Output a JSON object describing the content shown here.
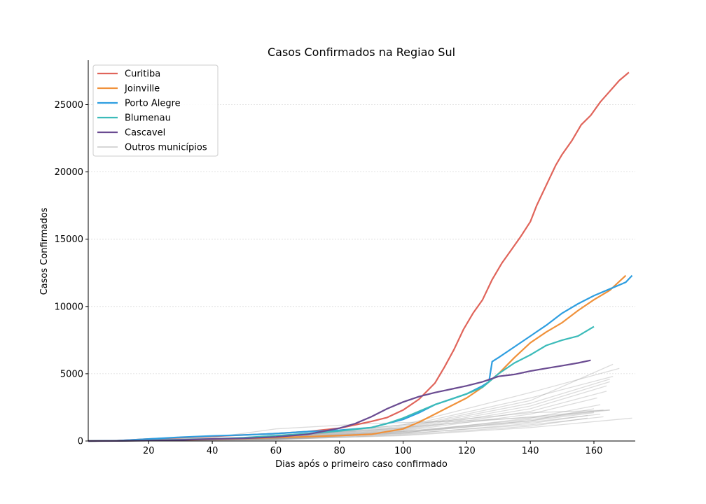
{
  "chart_data": {
    "type": "line",
    "title": "Casos Confirmados na Regiao Sul",
    "xlabel": "Dias após o primeiro caso confirmado",
    "ylabel": "Casos Confirmados",
    "xlim": [
      1,
      173
    ],
    "ylim": [
      0,
      28200
    ],
    "xticks": [
      20,
      40,
      60,
      80,
      100,
      120,
      140,
      160
    ],
    "yticks": [
      0,
      5000,
      10000,
      15000,
      20000,
      25000
    ],
    "grid": "horizontal dashed",
    "legend_position": "top-left",
    "series": [
      {
        "name": "Curitiba",
        "color": "#e0645a",
        "x": [
          1,
          10,
          20,
          30,
          40,
          50,
          60,
          70,
          80,
          90,
          95,
          100,
          105,
          110,
          113,
          116,
          119,
          122,
          125,
          128,
          131,
          134,
          137,
          140,
          142,
          144,
          146,
          148,
          150,
          153,
          156,
          159,
          162,
          165,
          168,
          171
        ],
        "y": [
          0,
          20,
          150,
          250,
          350,
          450,
          550,
          700,
          950,
          1450,
          1750,
          2300,
          3100,
          4300,
          5500,
          6800,
          8300,
          9500,
          10500,
          12000,
          13200,
          14200,
          15200,
          16300,
          17500,
          18500,
          19500,
          20500,
          21300,
          22300,
          23500,
          24200,
          25200,
          26000,
          26800,
          27400
        ]
      },
      {
        "name": "Joinville",
        "color": "#f0913a",
        "x": [
          1,
          10,
          20,
          30,
          40,
          50,
          60,
          70,
          80,
          90,
          100,
          105,
          110,
          115,
          120,
          125,
          130,
          135,
          140,
          145,
          150,
          155,
          160,
          165,
          170
        ],
        "y": [
          0,
          10,
          40,
          80,
          120,
          180,
          250,
          320,
          400,
          500,
          900,
          1400,
          2000,
          2600,
          3200,
          4000,
          5000,
          6200,
          7300,
          8100,
          8800,
          9700,
          10500,
          11200,
          12300
        ]
      },
      {
        "name": "Porto Alegre",
        "color": "#2e9ee0",
        "x": [
          1,
          10,
          20,
          30,
          40,
          50,
          60,
          70,
          80,
          90,
          100,
          105,
          110,
          115,
          120,
          125,
          127,
          128,
          130,
          135,
          140,
          145,
          150,
          155,
          160,
          165,
          170,
          172
        ],
        "y": [
          0,
          20,
          150,
          280,
          380,
          450,
          550,
          700,
          800,
          1000,
          1600,
          2100,
          2700,
          3100,
          3500,
          4100,
          4400,
          5900,
          6200,
          7000,
          7800,
          8600,
          9500,
          10200,
          10800,
          11300,
          11800,
          12300
        ]
      },
      {
        "name": "Blumenau",
        "color": "#3bbbb9",
        "x": [
          1,
          10,
          20,
          30,
          40,
          50,
          60,
          70,
          80,
          90,
          95,
          100,
          105,
          110,
          115,
          120,
          125,
          130,
          135,
          140,
          145,
          150,
          155,
          160
        ],
        "y": [
          0,
          10,
          50,
          100,
          150,
          250,
          400,
          550,
          750,
          1000,
          1300,
          1700,
          2200,
          2700,
          3100,
          3500,
          4000,
          5000,
          5800,
          6400,
          7100,
          7500,
          7800,
          8500
        ]
      },
      {
        "name": "Cascavel",
        "color": "#6a4b91",
        "x": [
          1,
          10,
          20,
          30,
          40,
          50,
          60,
          70,
          80,
          85,
          90,
          95,
          100,
          105,
          110,
          115,
          120,
          125,
          130,
          135,
          140,
          145,
          150,
          155,
          159
        ],
        "y": [
          0,
          5,
          30,
          80,
          150,
          200,
          300,
          500,
          950,
          1300,
          1800,
          2400,
          2900,
          3300,
          3600,
          3850,
          4100,
          4400,
          4800,
          4950,
          5200,
          5400,
          5600,
          5800,
          6000
        ]
      },
      {
        "name": "Outros municípios",
        "color": "#c8c8c8",
        "others": true,
        "lines": [
          {
            "x": [
              1,
              60,
              100,
              140,
              172
            ],
            "y": [
              0,
              120,
              400,
              1000,
              1700
            ]
          },
          {
            "x": [
              1,
              60,
              100,
              140,
              165
            ],
            "y": [
              0,
              150,
              700,
              1600,
              2300
            ]
          },
          {
            "x": [
              1,
              60,
              100,
              140,
              168
            ],
            "y": [
              0,
              300,
              1200,
              3600,
              5400
            ]
          },
          {
            "x": [
              1,
              60,
              100,
              140,
              166
            ],
            "y": [
              0,
              250,
              1000,
              3000,
              5700
            ]
          },
          {
            "x": [
              1,
              60,
              100,
              140,
              165
            ],
            "y": [
              0,
              200,
              900,
              2600,
              4400
            ]
          },
          {
            "x": [
              1,
              60,
              100,
              140,
              164
            ],
            "y": [
              0,
              180,
              800,
              2200,
              3700
            ]
          },
          {
            "x": [
              1,
              60,
              100,
              140,
              162
            ],
            "y": [
              0,
              150,
              600,
              1700,
              2700
            ]
          },
          {
            "x": [
              1,
              60,
              100,
              140,
              160
            ],
            "y": [
              0,
              220,
              700,
              1500,
              2100
            ]
          },
          {
            "x": [
              1,
              60,
              100,
              140,
              162
            ],
            "y": [
              0,
              160,
              650,
              1400,
              2000
            ]
          },
          {
            "x": [
              1,
              60,
              100,
              140,
              158
            ],
            "y": [
              0,
              100,
              450,
              1100,
              1700
            ]
          },
          {
            "x": [
              1,
              60,
              100,
              140,
              165
            ],
            "y": [
              0,
              200,
              1200,
              2100,
              2300
            ]
          },
          {
            "x": [
              1,
              60,
              100,
              140,
              160
            ],
            "y": [
              0,
              300,
              1000,
              1800,
              2200
            ]
          },
          {
            "x": [
              1,
              40,
              60,
              90,
              120,
              145,
              163
            ],
            "y": [
              0,
              250,
              900,
              1300,
              1500,
              1800,
              2300
            ]
          },
          {
            "x": [
              1,
              60,
              100,
              140,
              166
            ],
            "y": [
              0,
              260,
              1100,
              3200,
              4800
            ]
          },
          {
            "x": [
              1,
              60,
              100,
              140,
              164
            ],
            "y": [
              0,
              190,
              850,
              2400,
              4100
            ]
          },
          {
            "x": [
              1,
              60,
              100,
              140,
              160
            ],
            "y": [
              0,
              140,
              600,
              1500,
              2400
            ]
          },
          {
            "x": [
              1,
              60,
              100,
              140,
              158
            ],
            "y": [
              0,
              110,
              500,
              1300,
              1900
            ]
          },
          {
            "x": [
              1,
              60,
              100,
              140,
              161
            ],
            "y": [
              0,
              170,
              750,
              2000,
              3200
            ]
          },
          {
            "x": [
              1,
              60,
              100,
              140,
              163
            ],
            "y": [
              0,
              130,
              550,
              1200,
              1800
            ]
          },
          {
            "x": [
              1,
              60,
              100,
              140,
              165
            ],
            "y": [
              0,
              230,
              950,
              2800,
              4600
            ]
          }
        ]
      }
    ]
  }
}
